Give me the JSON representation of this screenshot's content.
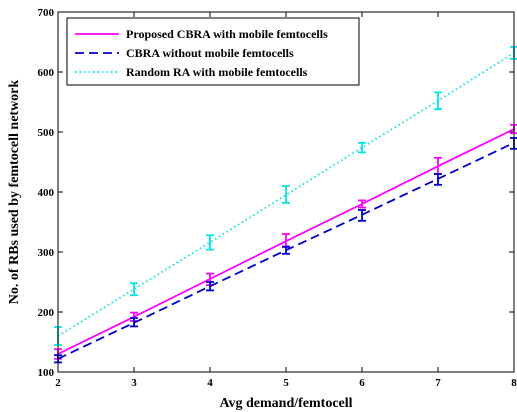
{
  "chart_data": {
    "type": "line",
    "title": "",
    "xlabel": "Avg demand/femtocell",
    "ylabel": "No. of RBs used by femtocell network",
    "xlim": [
      2,
      8
    ],
    "ylim": [
      100,
      700
    ],
    "xticks": [
      2,
      3,
      4,
      5,
      6,
      7,
      8
    ],
    "yticks": [
      100,
      200,
      300,
      400,
      500,
      600,
      700
    ],
    "grid": false,
    "legend_position": "top-left",
    "x": [
      2,
      3,
      4,
      5,
      6,
      7,
      8
    ],
    "series": [
      {
        "name": "Proposed CBRA with mobile femtocells",
        "values": [
          130,
          192,
          255,
          318,
          380,
          443,
          505
        ],
        "error_low": [
          122,
          185,
          245,
          308,
          374,
          430,
          498
        ],
        "error_high": [
          138,
          199,
          264,
          330,
          386,
          457,
          512
        ],
        "color": "#ff00ff",
        "line_style": "solid"
      },
      {
        "name": "CBRA without mobile femtocells",
        "values": [
          122,
          182,
          243,
          303,
          362,
          422,
          482
        ],
        "error_low": [
          116,
          176,
          236,
          297,
          352,
          412,
          472
        ],
        "error_high": [
          128,
          190,
          250,
          309,
          370,
          430,
          490
        ],
        "color": "#0000cc",
        "line_style": "dashed"
      },
      {
        "name": "Random RA with mobile femtocells",
        "values": [
          160,
          238,
          316,
          395,
          474,
          552,
          632
        ],
        "error_low": [
          145,
          228,
          304,
          382,
          466,
          538,
          622
        ],
        "error_high": [
          175,
          248,
          328,
          410,
          482,
          566,
          642
        ],
        "color": "#00e5e5",
        "line_style": "dotted"
      }
    ]
  }
}
